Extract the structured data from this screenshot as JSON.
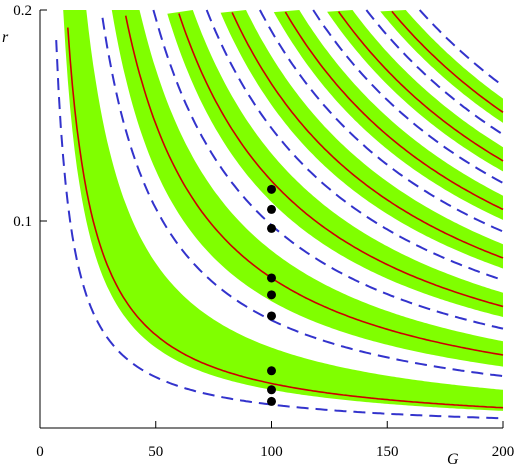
{
  "chart_data": {
    "type": "line",
    "title": "",
    "xlabel": "G",
    "ylabel": "r",
    "xlim": [
      0,
      200
    ],
    "ylim": [
      0.01,
      0.2
    ],
    "x_ticks": [
      0,
      50,
      100,
      150,
      200
    ],
    "x_tick_labels": [
      "0",
      "50",
      "100",
      "150",
      "200"
    ],
    "y_ticks": [
      0.1,
      0.2
    ],
    "y_tick_labels": [
      "0.1",
      "0.2"
    ],
    "grid": false,
    "legend": "none",
    "description_of_series": "Hyperbolic stability bands r ≈ k·A/G; band n spans A in [n^2, (n+1)^2] relative to outer dashed boundary",
    "series": [
      {
        "style": "band",
        "color": "#80ff00",
        "bands": [
          [
            2.0,
            4.0
          ],
          [
            6.2,
            8.6
          ],
          [
            10.9,
            13.2
          ],
          [
            15.5,
            17.8
          ],
          [
            20.1,
            22.4
          ],
          [
            24.7,
            27.0
          ],
          [
            29.3,
            31.6
          ]
        ]
      },
      {
        "style": "solid",
        "color": "#cc0000",
        "k_values": [
          2.3,
          7.3,
          11.9,
          16.5,
          21.1,
          25.7,
          30.3
        ]
      },
      {
        "style": "dashed",
        "color": "#3333cc",
        "k_values": [
          1.3,
          5.3,
          9.8,
          14.4,
          19.0,
          23.6,
          28.2,
          32.8
        ]
      }
    ],
    "points": [
      {
        "x": 100,
        "y": 0.0145
      },
      {
        "x": 100,
        "y": 0.02
      },
      {
        "x": 100,
        "y": 0.029
      },
      {
        "x": 100,
        "y": 0.055
      },
      {
        "x": 100,
        "y": 0.065
      },
      {
        "x": 100,
        "y": 0.073
      },
      {
        "x": 100,
        "y": 0.0965
      },
      {
        "x": 100,
        "y": 0.1055
      },
      {
        "x": 100,
        "y": 0.115
      }
    ],
    "colors": {
      "band": "#80ff00",
      "solid": "#cc0000",
      "dashed": "#3333cc",
      "point": "#000000"
    }
  }
}
